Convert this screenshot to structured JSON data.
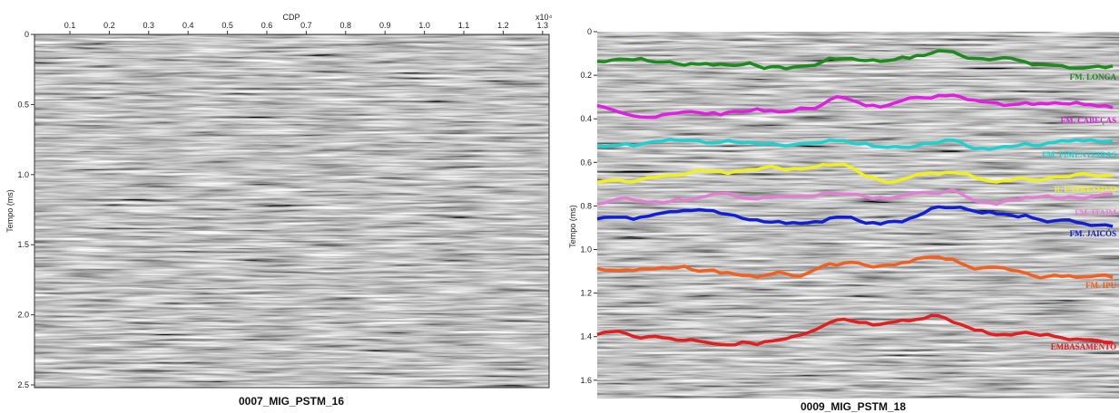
{
  "left": {
    "title": "0007_MIG_PSTM_16",
    "x_axis_label": "CDP",
    "x_multiplier": "x10⁴",
    "y_axis_label": "Tempo (ms)",
    "x_ticks": [
      "0.1",
      "0.2",
      "0.3",
      "0.4",
      "0.5",
      "0.6",
      "0.7",
      "0.8",
      "0.9",
      "1.0",
      "1.1",
      "1.2",
      "1.3"
    ],
    "y_ticks": [
      "0",
      "0.5",
      "1.0",
      "1.5",
      "2.0",
      "2.5"
    ]
  },
  "right": {
    "title": "0009_MIG_PSTM_18",
    "y_axis_label": "Tempo (ms)",
    "y_ticks": [
      "0",
      "0.2",
      "0.4",
      "0.6",
      "0.8",
      "1.0",
      "1.2",
      "1.4",
      "1.6"
    ],
    "horizons": [
      {
        "name": "FM. LONGA",
        "color": "#1e8a1e"
      },
      {
        "name": "FM. CABEÇAS",
        "color": "#e020e0"
      },
      {
        "name": "FM. PIMENTEIRAS",
        "color": "#20d0d0"
      },
      {
        "name": "R. EXPRESSIVO",
        "color": "#f0f020"
      },
      {
        "name": "FM. ITAIM",
        "color": "#e080d0"
      },
      {
        "name": "FM. JAICÓS",
        "color": "#1020d0"
      },
      {
        "name": "FM. IPU",
        "color": "#f06020"
      },
      {
        "name": "EMBASAMENTO",
        "color": "#e02020"
      }
    ]
  }
}
